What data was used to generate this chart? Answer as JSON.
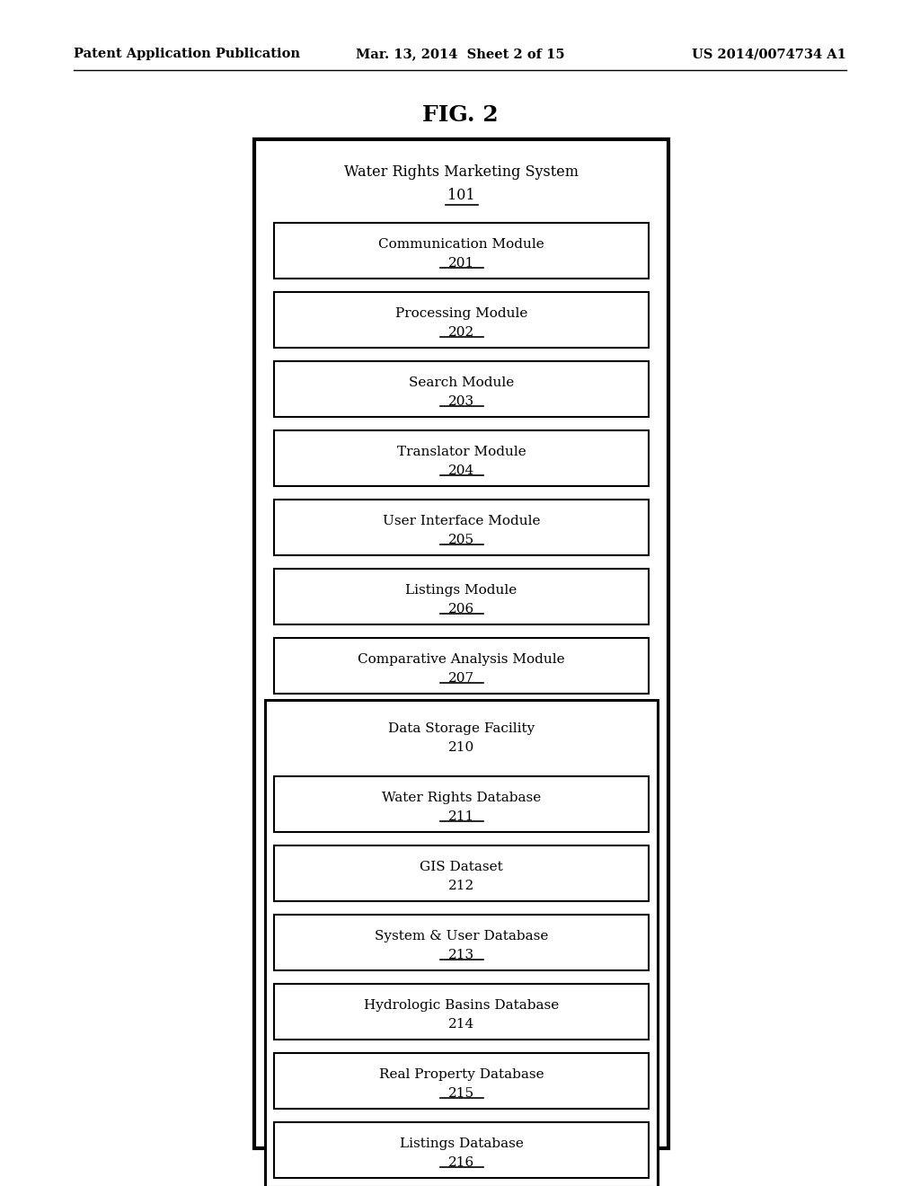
{
  "title": "FIG. 2",
  "header_left": "Patent Application Publication",
  "header_center": "Mar. 13, 2014  Sheet 2 of 15",
  "header_right": "US 2014/0074734 A1",
  "outer_box_label": "Water Rights Marketing System",
  "outer_box_number": "101",
  "outer_underline": true,
  "boxes": [
    {
      "label": "Communication Module",
      "number": "201",
      "underline": true,
      "is_group_header": false
    },
    {
      "label": "Processing Module",
      "number": "202",
      "underline": true,
      "is_group_header": false
    },
    {
      "label": "Search Module",
      "number": "203",
      "underline": true,
      "is_group_header": false
    },
    {
      "label": "Translator Module",
      "number": "204",
      "underline": true,
      "is_group_header": false
    },
    {
      "label": "User Interface Module",
      "number": "205",
      "underline": true,
      "is_group_header": false
    },
    {
      "label": "Listings Module",
      "number": "206",
      "underline": true,
      "is_group_header": false
    },
    {
      "label": "Comparative Analysis Module",
      "number": "207",
      "underline": true,
      "is_group_header": false
    },
    {
      "label": "Data Storage Facility",
      "number": "210",
      "underline": false,
      "is_group_header": true
    },
    {
      "label": "Water Rights Database",
      "number": "211",
      "underline": true,
      "is_group_header": false
    },
    {
      "label": "GIS Dataset",
      "number": "212",
      "underline": false,
      "is_group_header": false
    },
    {
      "label": "System & User Database",
      "number": "213",
      "underline": true,
      "is_group_header": false
    },
    {
      "label": "Hydrologic Basins Database",
      "number": "214",
      "underline": false,
      "is_group_header": false
    },
    {
      "label": "Real Property Database",
      "number": "215",
      "underline": true,
      "is_group_header": false
    },
    {
      "label": "Listings Database",
      "number": "216",
      "underline": true,
      "is_group_header": false
    }
  ],
  "background_color": "#ffffff",
  "text_color": "#000000",
  "outer_lw": 3.0,
  "inner_lw": 1.5,
  "group_lw": 2.2
}
